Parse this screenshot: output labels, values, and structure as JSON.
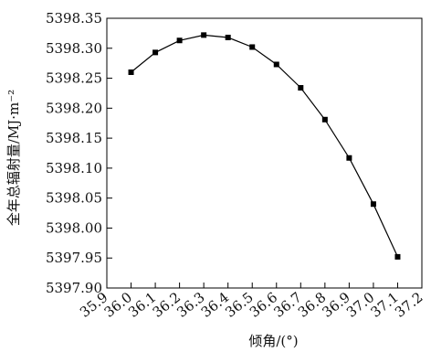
{
  "chart_data": {
    "type": "line",
    "title": "",
    "xlabel": "倾角/(°)",
    "ylabel": "全年总辐射量/MJ·m⁻²",
    "xlim": [
      35.9,
      37.2
    ],
    "ylim": [
      5397.9,
      5398.35
    ],
    "x_ticks": [
      "35.9",
      "36.0",
      "36.1",
      "36.2",
      "36.3",
      "36.4",
      "36.5",
      "36.6",
      "36.7",
      "36.8",
      "36.9",
      "37.0",
      "37.1",
      "37.2"
    ],
    "y_ticks": [
      "5397.90",
      "5397.95",
      "5398.00",
      "5398.05",
      "5398.10",
      "5398.15",
      "5398.20",
      "5398.25",
      "5398.30",
      "5398.35"
    ],
    "grid": false,
    "marker": "square",
    "line_color": "#000000",
    "series": [
      {
        "x": [
          36.0,
          36.1,
          36.2,
          36.3,
          36.4,
          36.5,
          36.6,
          36.7,
          36.8,
          36.9,
          37.0,
          37.1
        ],
        "values": [
          5398.26,
          5398.293,
          5398.313,
          5398.322,
          5398.318,
          5398.302,
          5398.273,
          5398.234,
          5398.181,
          5398.117,
          5398.04,
          5397.952
        ]
      }
    ]
  }
}
